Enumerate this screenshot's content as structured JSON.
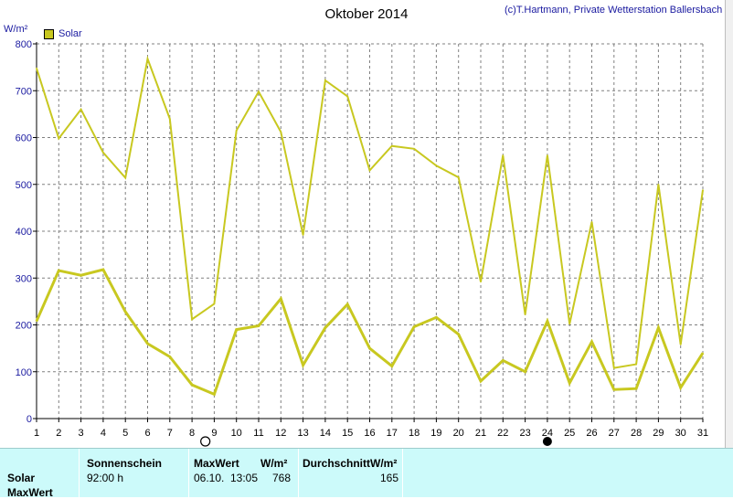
{
  "title": "Oktober 2014",
  "credit": "(c)T.Hartmann, Private Wetterstation Ballersbach",
  "y_unit": "W/m²",
  "legend_label": "Solar",
  "colors": {
    "series": "#c8c820",
    "axis_text": "#1a1aa0",
    "panel_bg": "#ccfafa",
    "grid": "#808080"
  },
  "markers": {
    "new_moon_day": 8.6,
    "full_moon_day": 24.0
  },
  "chart_data": {
    "type": "line",
    "ylim": [
      0,
      800
    ],
    "xlim": [
      1,
      31
    ],
    "yticks": [
      0,
      100,
      200,
      300,
      400,
      500,
      600,
      700,
      800
    ],
    "x": [
      1,
      2,
      3,
      4,
      5,
      6,
      7,
      8,
      9,
      10,
      11,
      12,
      13,
      14,
      15,
      16,
      17,
      18,
      19,
      20,
      21,
      22,
      23,
      24,
      25,
      26,
      27,
      28,
      29,
      30,
      31
    ],
    "xticks": [
      "1",
      "2",
      "3",
      "4",
      "5",
      "6",
      "7",
      "8",
      "9",
      "10",
      "11",
      "12",
      "13",
      "14",
      "15",
      "16",
      "17",
      "18",
      "19",
      "20",
      "21",
      "22",
      "23",
      "24",
      "25",
      "26",
      "27",
      "28",
      "29",
      "30",
      "31"
    ],
    "grid": true,
    "legend": "top-left",
    "series": [
      {
        "values": [
          748,
          598,
          660,
          568,
          514,
          768,
          640,
          212,
          245,
          615,
          698,
          612,
          392,
          722,
          688,
          530,
          582,
          576,
          540,
          515,
          292,
          562,
          222,
          562,
          202,
          420,
          108,
          116,
          500,
          158,
          488
        ]
      },
      {
        "values": [
          208,
          316,
          306,
          318,
          228,
          160,
          132,
          72,
          52,
          190,
          198,
          256,
          114,
          194,
          244,
          150,
          112,
          196,
          216,
          180,
          80,
          124,
          100,
          208,
          76,
          164,
          62,
          64,
          194,
          66,
          140
        ]
      }
    ]
  },
  "panel": {
    "row_labels": [
      "Solar",
      "MaxWert"
    ],
    "sonnenschein": {
      "header": "Sonnenschein",
      "value": "92:00 h"
    },
    "maxwert": {
      "header": "MaxWert",
      "unit": "W/m²",
      "date": "06.10.",
      "time": "13:05",
      "value": "768"
    },
    "durchschnitt": {
      "header": "DurchschnittW/m²",
      "value": "165"
    }
  }
}
